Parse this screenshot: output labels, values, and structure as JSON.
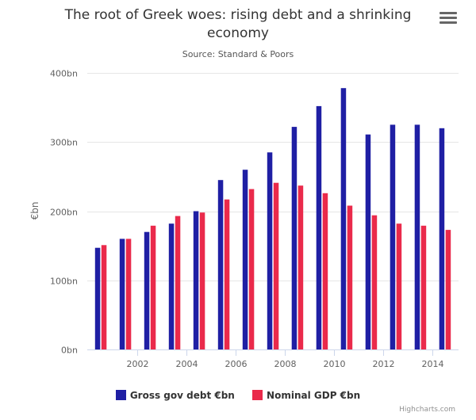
{
  "chart_data": {
    "type": "bar",
    "title": "The root of Greek woes: rising debt and a shrinking economy",
    "subtitle": "Source: Standard & Poors",
    "ylabel": "€bn",
    "xlabel": "",
    "x": [
      2001,
      2002,
      2003,
      2004,
      2005,
      2006,
      2007,
      2008,
      2009,
      2010,
      2011,
      2012,
      2013,
      2014,
      2015
    ],
    "x_ticks": [
      {
        "value": 2002,
        "label": "2002"
      },
      {
        "value": 2004,
        "label": "2004"
      },
      {
        "value": 2006,
        "label": "2006"
      },
      {
        "value": 2008,
        "label": "2008"
      },
      {
        "value": 2010,
        "label": "2010"
      },
      {
        "value": 2012,
        "label": "2012"
      },
      {
        "value": 2014,
        "label": "2014"
      }
    ],
    "y_ticks": [
      {
        "value": 0,
        "label": "0bn"
      },
      {
        "value": 100,
        "label": "100bn"
      },
      {
        "value": 200,
        "label": "200bn"
      },
      {
        "value": 300,
        "label": "300bn"
      },
      {
        "value": 400,
        "label": "400bn"
      }
    ],
    "ylim": [
      0,
      400
    ],
    "grid": true,
    "legend_position": "bottom-center",
    "series": [
      {
        "name": "Gross gov debt €bn",
        "color": "#1f1fa4",
        "values": [
          147,
          160,
          170,
          182,
          200,
          245,
          260,
          285,
          322,
          352,
          378,
          311,
          325,
          325,
          320
        ]
      },
      {
        "name": "Nominal GDP €bn",
        "color": "#ea2a4b",
        "values": [
          151,
          160,
          179,
          193,
          198,
          217,
          232,
          241,
          237,
          226,
          208,
          194,
          182,
          179,
          173
        ]
      }
    ]
  },
  "ui": {
    "menu_icon": "hamburger-menu-icon",
    "credits": "Highcharts.com"
  }
}
